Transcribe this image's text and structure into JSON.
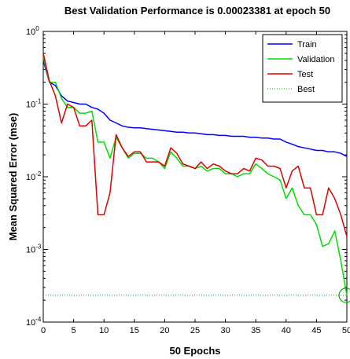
{
  "chart_data": {
    "type": "line",
    "title": "Best Validation Performance is 0.00023381 at epoch 50",
    "xlabel": "50 Epochs",
    "ylabel": "Mean Squared Error  (mse)",
    "xlim": [
      0,
      50
    ],
    "ylim": [
      0.0001,
      1
    ],
    "yscale": "log",
    "grid": false,
    "legend_position": "top-right",
    "x_ticks": [
      0,
      5,
      10,
      15,
      20,
      25,
      30,
      35,
      40,
      45,
      50
    ],
    "y_ticks": [
      {
        "value": 1,
        "base": "10",
        "exp": "0"
      },
      {
        "value": 0.1,
        "base": "10",
        "exp": "-1"
      },
      {
        "value": 0.01,
        "base": "10",
        "exp": "-2"
      },
      {
        "value": 0.001,
        "base": "10",
        "exp": "-3"
      },
      {
        "value": 0.0001,
        "base": "10",
        "exp": "-4"
      }
    ],
    "x": [
      0,
      1,
      2,
      3,
      4,
      5,
      6,
      7,
      8,
      9,
      10,
      11,
      12,
      13,
      14,
      15,
      16,
      17,
      18,
      19,
      20,
      21,
      22,
      23,
      24,
      25,
      26,
      27,
      28,
      29,
      30,
      31,
      32,
      33,
      34,
      35,
      36,
      37,
      38,
      39,
      40,
      41,
      42,
      43,
      44,
      45,
      46,
      47,
      48,
      49,
      50
    ],
    "series": [
      {
        "name": "Train",
        "color": "#0000ff",
        "style": "solid",
        "values": [
          0.4,
          0.2,
          0.18,
          0.13,
          0.11,
          0.105,
          0.1,
          0.1,
          0.09,
          0.085,
          0.075,
          0.06,
          0.055,
          0.05,
          0.048,
          0.047,
          0.047,
          0.046,
          0.045,
          0.044,
          0.043,
          0.042,
          0.041,
          0.041,
          0.04,
          0.04,
          0.039,
          0.038,
          0.038,
          0.037,
          0.037,
          0.036,
          0.036,
          0.036,
          0.035,
          0.035,
          0.034,
          0.034,
          0.033,
          0.033,
          0.03,
          0.028,
          0.026,
          0.025,
          0.024,
          0.023,
          0.023,
          0.022,
          0.022,
          0.021,
          0.019
        ]
      },
      {
        "name": "Validation",
        "color": "#00dd00",
        "style": "solid",
        "values": [
          0.45,
          0.2,
          0.2,
          0.12,
          0.09,
          0.09,
          0.075,
          0.075,
          0.08,
          0.03,
          0.03,
          0.018,
          0.035,
          0.025,
          0.018,
          0.021,
          0.021,
          0.018,
          0.018,
          0.016,
          0.013,
          0.022,
          0.018,
          0.014,
          0.014,
          0.013,
          0.014,
          0.012,
          0.013,
          0.013,
          0.011,
          0.011,
          0.01,
          0.011,
          0.011,
          0.015,
          0.013,
          0.011,
          0.01,
          0.009,
          0.005,
          0.007,
          0.004,
          0.003,
          0.003,
          0.0022,
          0.0011,
          0.0012,
          0.0018,
          0.0007,
          0.00023381
        ]
      },
      {
        "name": "Test",
        "color": "#dd0000",
        "style": "solid",
        "values": [
          0.5,
          0.21,
          0.13,
          0.055,
          0.1,
          0.09,
          0.05,
          0.05,
          0.06,
          0.003,
          0.003,
          0.006,
          0.038,
          0.025,
          0.019,
          0.022,
          0.022,
          0.016,
          0.016,
          0.016,
          0.014,
          0.025,
          0.021,
          0.015,
          0.014,
          0.013,
          0.016,
          0.013,
          0.015,
          0.014,
          0.012,
          0.011,
          0.011,
          0.013,
          0.012,
          0.018,
          0.017,
          0.014,
          0.014,
          0.013,
          0.007,
          0.012,
          0.014,
          0.007,
          0.007,
          0.003,
          0.003,
          0.007,
          0.005,
          0.003,
          0.0015
        ]
      },
      {
        "name": "Best",
        "color": "#00aa00",
        "style": "dotted",
        "constant": 0.00023381
      }
    ],
    "best_marker": {
      "x": 50,
      "y": 0.00023381,
      "color": "#00aa00"
    }
  }
}
